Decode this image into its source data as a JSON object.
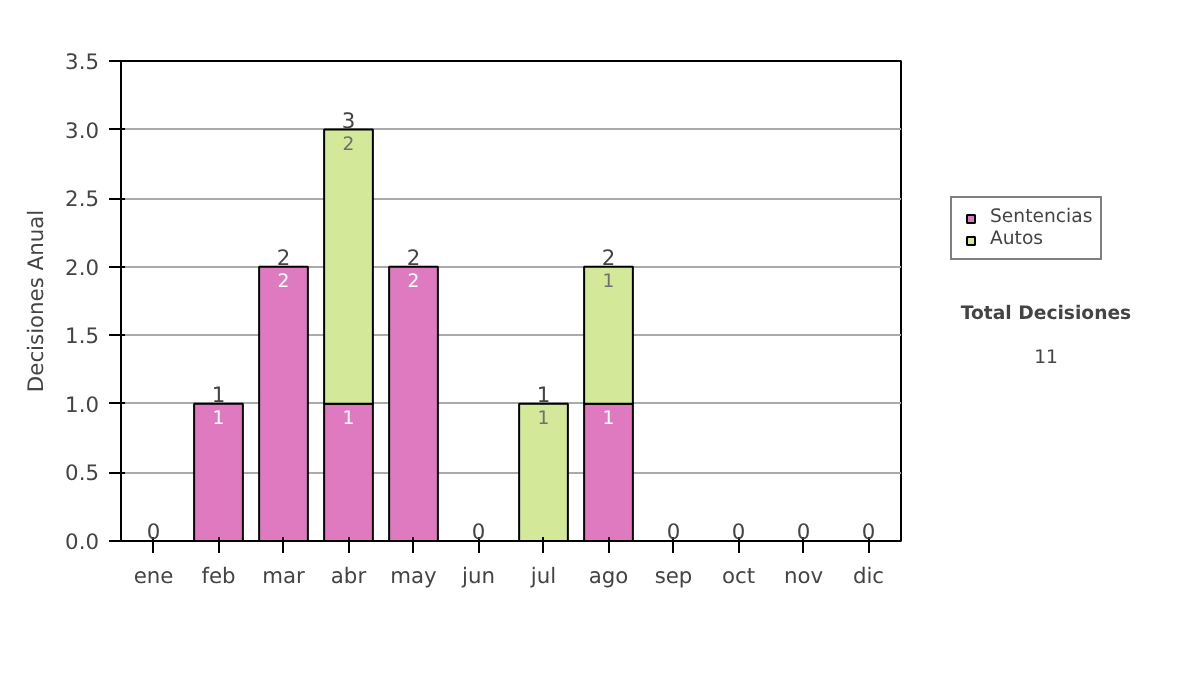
{
  "chart_data": {
    "type": "bar",
    "stacked": true,
    "ylabel": "Decisiones Anual",
    "categories": [
      "ene",
      "feb",
      "mar",
      "abr",
      "may",
      "jun",
      "jul",
      "ago",
      "sep",
      "oct",
      "nov",
      "dic"
    ],
    "series": [
      {
        "name": "Sentencias",
        "color": "#e07ac0",
        "values": [
          0,
          1,
          2,
          1,
          2,
          0,
          0,
          1,
          0,
          0,
          0,
          0
        ],
        "value_labels": [
          null,
          "1",
          "2",
          "1",
          "2",
          null,
          null,
          "1",
          null,
          null,
          null,
          null
        ]
      },
      {
        "name": "Autos",
        "color": "#d4e89a",
        "values": [
          0,
          0,
          0,
          2,
          0,
          0,
          1,
          1,
          0,
          0,
          0,
          0
        ],
        "value_labels": [
          null,
          null,
          null,
          "2",
          null,
          null,
          "1",
          "1",
          null,
          null,
          null,
          null
        ]
      }
    ],
    "totals": [
      "0",
      "1",
      "2",
      "3",
      "2",
      "0",
      "1",
      "2",
      "0",
      "0",
      "0",
      "0"
    ],
    "ylim": [
      0,
      3.5
    ],
    "yticks": [
      {
        "value": 0,
        "label": "0.0"
      },
      {
        "value": 0.5,
        "label": "0.5"
      },
      {
        "value": 1,
        "label": "1.0"
      },
      {
        "value": 1.5,
        "label": "1.5"
      },
      {
        "value": 2,
        "label": "2.0"
      },
      {
        "value": 2.5,
        "label": "2.5"
      },
      {
        "value": 3,
        "label": "3.0"
      },
      {
        "value": 3.5,
        "label": "3.5"
      }
    ],
    "grid": "y",
    "legend": "right",
    "annotations": [
      "Total Decisiones",
      "11"
    ]
  }
}
